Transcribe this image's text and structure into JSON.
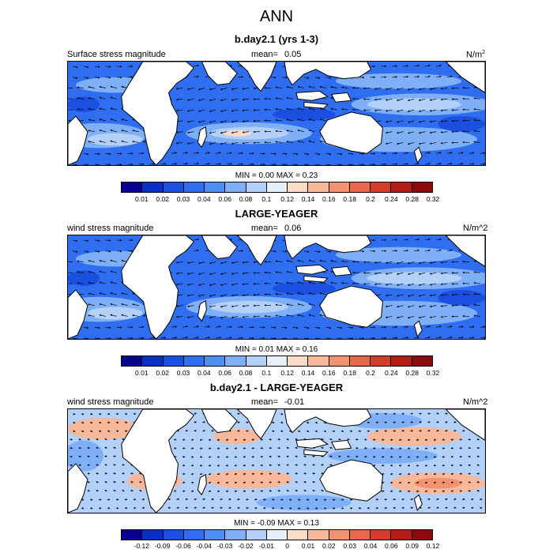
{
  "page_title": "ANN",
  "panels": [
    {
      "title": "b.day2.1 (yrs 1-3)",
      "left_label": "Surface stress magnitude",
      "mean_label": "mean=",
      "mean_value": "0.05",
      "unit_base": "N/m",
      "unit_sup": "2",
      "minmax": "MIN =  0.00 MAX =   0.23",
      "colorbar_ticks": [
        "0.01",
        "0.02",
        "0.03",
        "0.04",
        "0.06",
        "0.08",
        "0.1",
        "0.12",
        "0.14",
        "0.16",
        "0.18",
        "0.2",
        "0.24",
        "0.28",
        "0.32"
      ]
    },
    {
      "title": "LARGE-YEAGER",
      "left_label": "wind stress magnitude",
      "mean_label": "mean=",
      "mean_value": "0.06",
      "unit": "N/m^2",
      "minmax": "MIN =  0.01 MAX =   0.16",
      "colorbar_ticks": [
        "0.01",
        "0.02",
        "0.03",
        "0.04",
        "0.06",
        "0.08",
        "0.1",
        "0.12",
        "0.14",
        "0.16",
        "0.18",
        "0.2",
        "0.24",
        "0.28",
        "0.32"
      ]
    },
    {
      "title": "b.day2.1 - LARGE-YEAGER",
      "left_label": "wind stress magnitude",
      "mean_label": "mean=",
      "mean_value": "-0.01",
      "unit": "N/m^2",
      "minmax": "MIN = -0.09 MAX =   0.13",
      "colorbar_ticks": [
        "-0.12",
        "-0.09",
        "-0.06",
        "-0.04",
        "-0.03",
        "-0.02",
        "-0.01",
        "0",
        "0.01",
        "0.02",
        "0.03",
        "0.04",
        "0.06",
        "0.09",
        "0.12"
      ]
    }
  ],
  "colors": {
    "levels": [
      "#08008f",
      "#0a2fc4",
      "#1a4fe0",
      "#2f6ef0",
      "#4f8ff5",
      "#7fb0f7",
      "#b3d1f8",
      "#e6f0fb",
      "#fbdcc8",
      "#f7b89b",
      "#f2926f",
      "#e9674a",
      "#d43d2a",
      "#b21d16",
      "#8c0a0a"
    ],
    "land": "#ffffff",
    "coast": "#000000"
  }
}
